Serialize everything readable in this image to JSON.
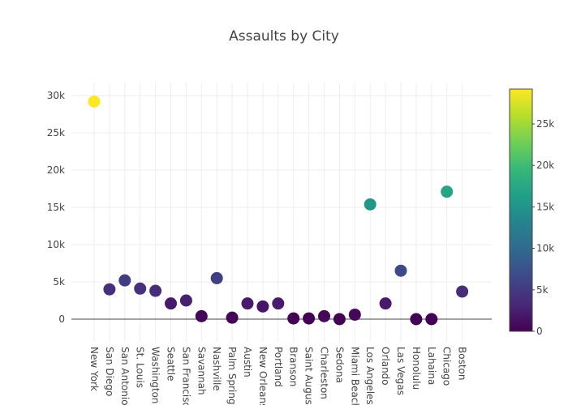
{
  "chart_data": {
    "type": "scatter",
    "title": "Assaults by City",
    "xlabel": "",
    "ylabel": "",
    "categories": [
      "New York",
      "San Diego",
      "San Antonio",
      "St. Louis",
      "Washington",
      "Seattle",
      "San Francisco",
      "Savannah",
      "Nashville",
      "Palm Springs",
      "Austin",
      "New Orleans",
      "Portland",
      "Branson",
      "Saint Augustine",
      "Charleston",
      "Sedona",
      "Miami Beach",
      "Los Angeles",
      "Orlando",
      "Las Vegas",
      "Honolulu",
      "Lahaina",
      "Chicago",
      "Boston"
    ],
    "values": [
      29200,
      4000,
      5200,
      4100,
      3800,
      2100,
      2500,
      400,
      5500,
      200,
      2100,
      1700,
      2100,
      100,
      100,
      400,
      0,
      600,
      15400,
      2100,
      6500,
      0,
      0,
      17100,
      3700
    ],
    "ylim": [
      -3000,
      32000
    ],
    "yticks": [
      0,
      5000,
      10000,
      15000,
      20000,
      25000,
      30000
    ],
    "ytick_labels": [
      "0",
      "5k",
      "10k",
      "15k",
      "20k",
      "25k",
      "30k"
    ],
    "grid": true,
    "colorbar": {
      "min": 0,
      "max": 29200,
      "ticks": [
        0,
        5000,
        10000,
        15000,
        20000,
        25000
      ],
      "tick_labels": [
        "0",
        "5k",
        "10k",
        "15k",
        "20k",
        "25k"
      ],
      "colorscale": "Viridis"
    }
  }
}
